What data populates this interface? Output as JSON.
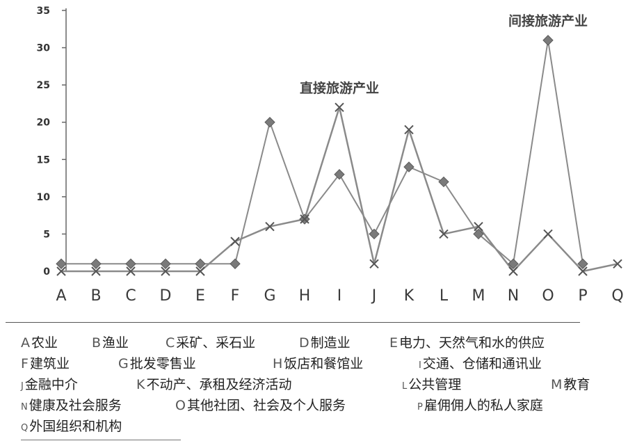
{
  "chart_data": {
    "type": "line",
    "categories": [
      "A",
      "B",
      "C",
      "D",
      "E",
      "F",
      "G",
      "H",
      "I",
      "J",
      "K",
      "L",
      "M",
      "N",
      "O",
      "P",
      "Q"
    ],
    "yticks": [
      "0",
      "5",
      "10",
      "15",
      "20",
      "25",
      "30",
      "35"
    ],
    "ylim": [
      0,
      35
    ],
    "series": [
      {
        "marker": "diamond",
        "color": "#8a8a8a",
        "values": [
          1,
          1,
          1,
          1,
          1,
          1,
          20,
          7,
          13,
          5,
          14,
          12,
          5,
          1,
          31,
          1,
          null
        ]
      },
      {
        "marker": "x",
        "color": "#8a8a8a",
        "values": [
          0,
          0,
          0,
          0,
          0,
          4,
          6,
          7,
          22,
          1,
          19,
          5,
          6,
          0,
          5,
          0,
          1
        ]
      }
    ],
    "annotations": [
      {
        "text": "直接旅游产业",
        "x": "I",
        "y": 24
      },
      {
        "text": "间接旅游产业",
        "x": "O",
        "y": 33
      }
    ],
    "grid": false,
    "legend": "bottom"
  },
  "legend": {
    "rows": [
      [
        {
          "letter": "A",
          "text": "农业"
        },
        {
          "letter": "B",
          "text": "渔业"
        },
        {
          "letter": "C",
          "text": "采矿、采石业"
        },
        {
          "letter": "D",
          "text": "制造业"
        },
        {
          "letter": "E",
          "text": "电力、天然气和水的供应"
        }
      ],
      [
        {
          "letter": "F",
          "text": "建筑业"
        },
        {
          "letter": "G",
          "text": "批发零售业"
        },
        {
          "letter": "H",
          "text": "饭店和餐馆业"
        },
        {
          "letter": "I",
          "text": "交通、仓储和通讯业"
        }
      ],
      [
        {
          "letter": "J",
          "text": "金融中介"
        },
        {
          "letter": "K",
          "text": "不动产、承租及经济活动"
        },
        {
          "letter": "L",
          "text": "公共管理"
        },
        {
          "letter": "M",
          "text": "教育"
        }
      ],
      [
        {
          "letter": "N",
          "text": "健康及社会服务"
        },
        {
          "letter": "O",
          "text": "其他社团、社会及个人服务"
        },
        {
          "letter": "P",
          "text": "雇佣佣人的私人家庭"
        }
      ],
      [
        {
          "letter": "Q",
          "text": "外国组织和机构"
        }
      ]
    ]
  }
}
